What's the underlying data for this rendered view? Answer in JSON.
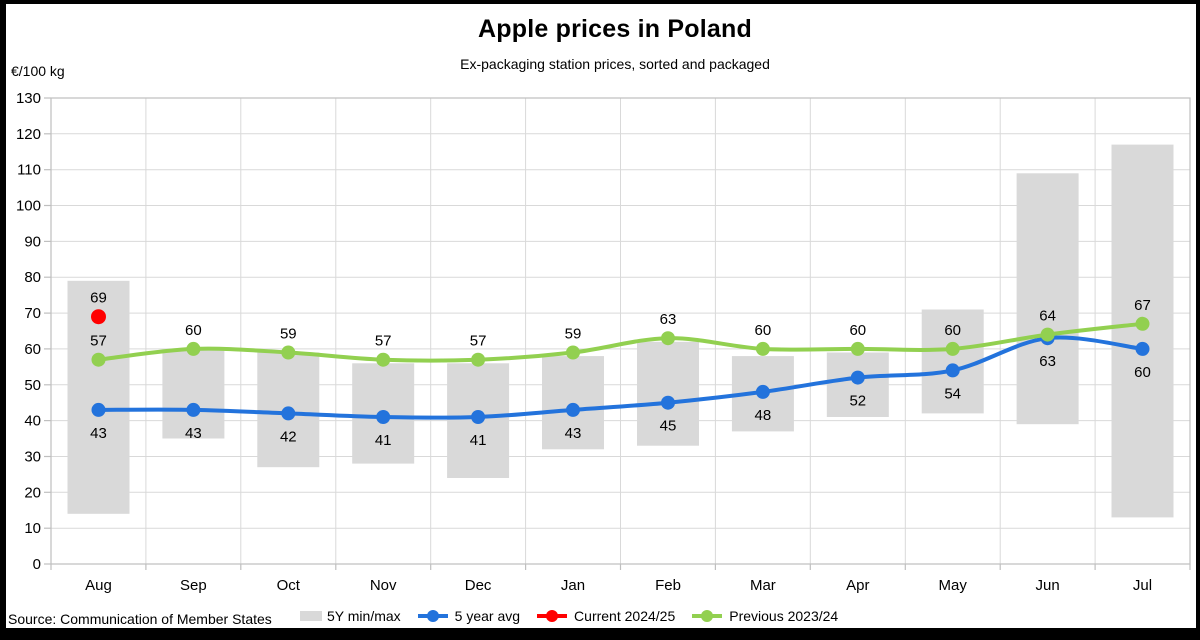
{
  "title": "Apple prices in Poland",
  "subtitle": "Ex-packaging station prices, sorted and packaged",
  "y_axis_unit": "€/100 kg",
  "source": "Source: Communication of Member States",
  "colors": {
    "bar": "#D9D9D9",
    "avg": "#2373DC",
    "current": "#FF0000",
    "previous": "#92D050",
    "grid": "#D9D9D9",
    "axis": "#BFBFBF",
    "text": "#000000",
    "frame": "#000000",
    "background": "#FFFFFF"
  },
  "legend": [
    {
      "label": "5Y min/max",
      "type": "bar",
      "color_key": "bar"
    },
    {
      "label": "5 year avg",
      "type": "line",
      "color_key": "avg"
    },
    {
      "label": "Current 2024/25",
      "type": "line",
      "color_key": "current"
    },
    {
      "label": "Previous 2023/24",
      "type": "line",
      "color_key": "previous"
    }
  ],
  "chart_data": {
    "type": "line",
    "title": "Apple prices in Poland",
    "subtitle": "Ex-packaging station prices, sorted and packaged",
    "ylabel": "€/100 kg",
    "categories": [
      "Aug",
      "Sep",
      "Oct",
      "Nov",
      "Dec",
      "Jan",
      "Feb",
      "Mar",
      "Apr",
      "May",
      "Jun",
      "Jul"
    ],
    "y_axis": {
      "min": 0,
      "max": 130,
      "step": 10
    },
    "grid": true,
    "legend_position": "bottom",
    "series": [
      {
        "name": "5Y min/max",
        "type": "range_bar",
        "min": [
          14,
          35,
          27,
          28,
          24,
          32,
          33,
          37,
          41,
          42,
          39,
          13
        ],
        "max": [
          79,
          60,
          59,
          56,
          56,
          58,
          62,
          58,
          59,
          71,
          109,
          117
        ]
      },
      {
        "name": "5 year avg",
        "type": "line",
        "values": [
          43,
          43,
          42,
          41,
          41,
          43,
          45,
          48,
          52,
          54,
          63,
          60
        ]
      },
      {
        "name": "Current 2024/25",
        "type": "point",
        "values": [
          69,
          null,
          null,
          null,
          null,
          null,
          null,
          null,
          null,
          null,
          null,
          null
        ]
      },
      {
        "name": "Previous 2023/24",
        "type": "line",
        "values": [
          57,
          60,
          59,
          57,
          57,
          59,
          63,
          60,
          60,
          60,
          64,
          67
        ]
      }
    ]
  }
}
